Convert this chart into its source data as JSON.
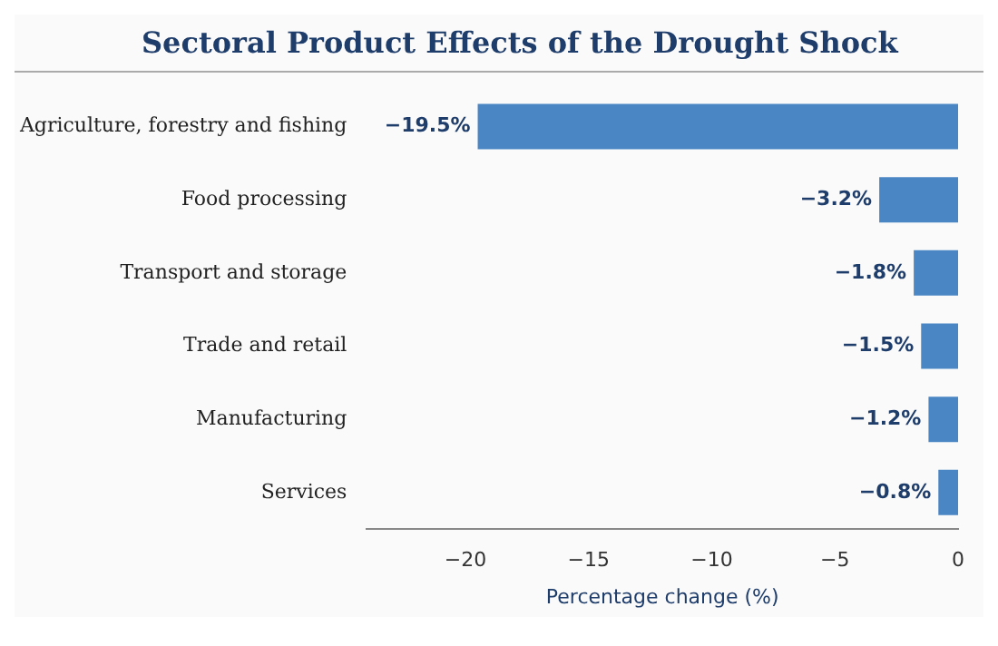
{
  "chart_data": {
    "type": "bar",
    "orientation": "horizontal",
    "title": "Sectoral Product Effects of the Drought Shock",
    "xlabel": "Percentage change (%)",
    "categories": [
      "Agriculture, forestry and fishing",
      "Food processing",
      "Transport and storage",
      "Trade and retail",
      "Manufacturing",
      "Services"
    ],
    "values": [
      -19.5,
      -3.2,
      -1.8,
      -1.5,
      -1.2,
      -0.8
    ],
    "value_labels": [
      "−19.5%",
      "−3.2%",
      "−1.8%",
      "−1.5%",
      "−1.2%",
      "−0.8%"
    ],
    "color": "#4a86c4",
    "xlim": [
      -24,
      0
    ],
    "xticks": [
      {
        "value": -20,
        "label": "−20"
      },
      {
        "value": -15,
        "label": "−15"
      },
      {
        "value": -10,
        "label": "−10"
      },
      {
        "value": -5,
        "label": "−5"
      },
      {
        "value": 0,
        "label": "0"
      }
    ],
    "grid": false,
    "legend": false
  }
}
